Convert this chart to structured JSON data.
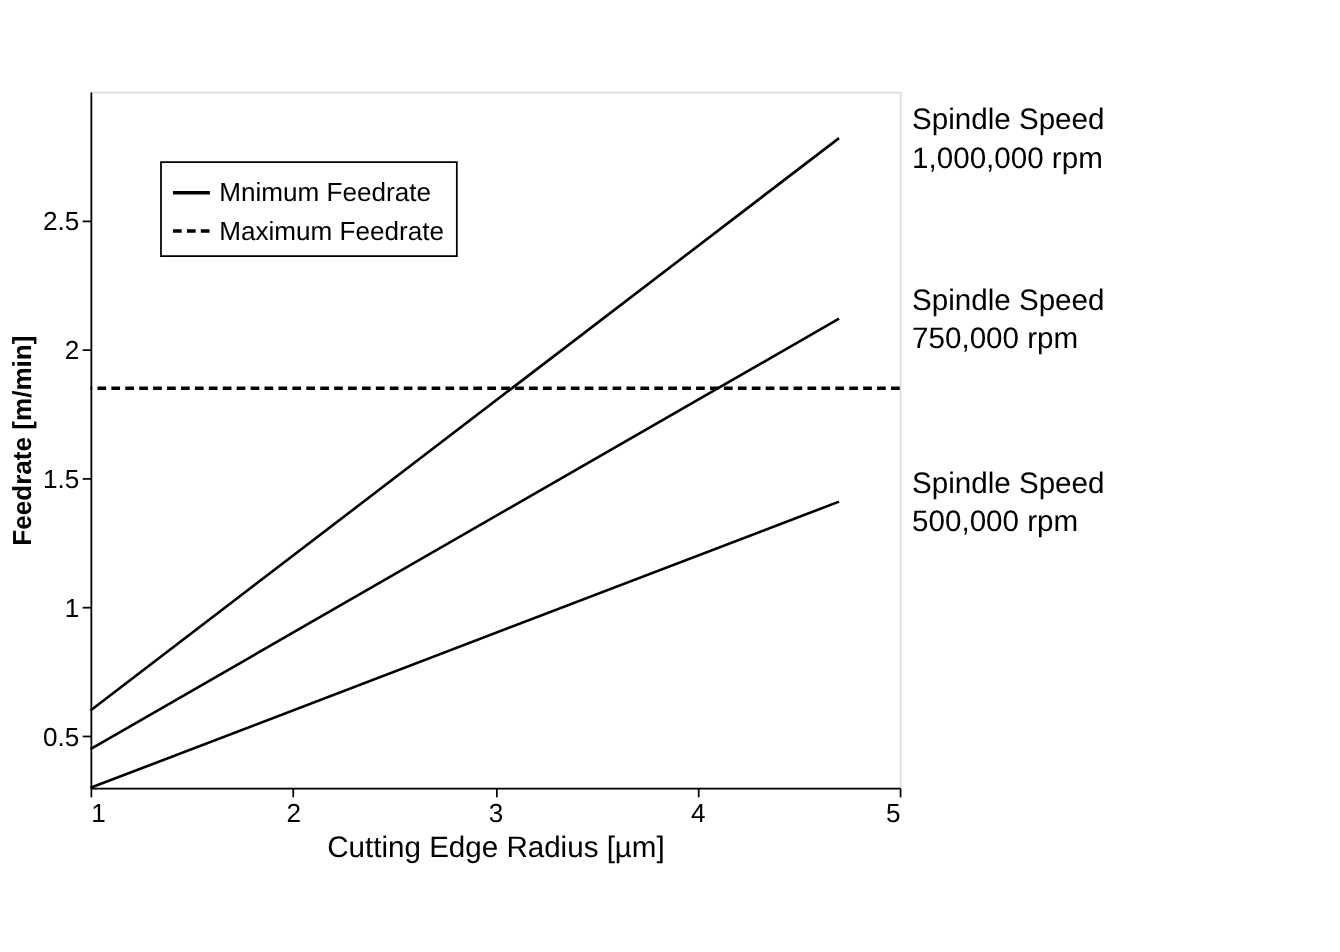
{
  "chart_data": {
    "type": "line",
    "xlabel": "Cutting Edge Radius [µm]",
    "ylabel": "Feedrate [m/min]",
    "xlim": [
      1,
      5
    ],
    "xticks": [
      1,
      2,
      3,
      4,
      5
    ],
    "ylim": [
      0.3,
      3.0
    ],
    "yticks": [
      0.5,
      1,
      1.5,
      2,
      2.5
    ],
    "x": [
      1,
      4.7
    ],
    "series": [
      {
        "name": "Mnimum Feedrate",
        "color": "#000000",
        "values": [
          0.6,
          2.82
        ]
      },
      {
        "color": "#000000",
        "values": [
          0.45,
          2.12
        ]
      },
      {
        "color": "#000000",
        "values": [
          0.3,
          1.41
        ]
      }
    ],
    "line_style": "solid",
    "ref_lines": [
      {
        "axis": "y",
        "value": 1.85,
        "label": "Maximum Feedrate",
        "color": "#000000",
        "line_style": "dashed"
      }
    ],
    "annotations": [
      "Spindle Speed\n1,000,000 rpm",
      "Spindle Speed\n750,000 rpm",
      "Spindle Speed\n500,000 rpm"
    ],
    "grid": false,
    "legend": "top left"
  }
}
